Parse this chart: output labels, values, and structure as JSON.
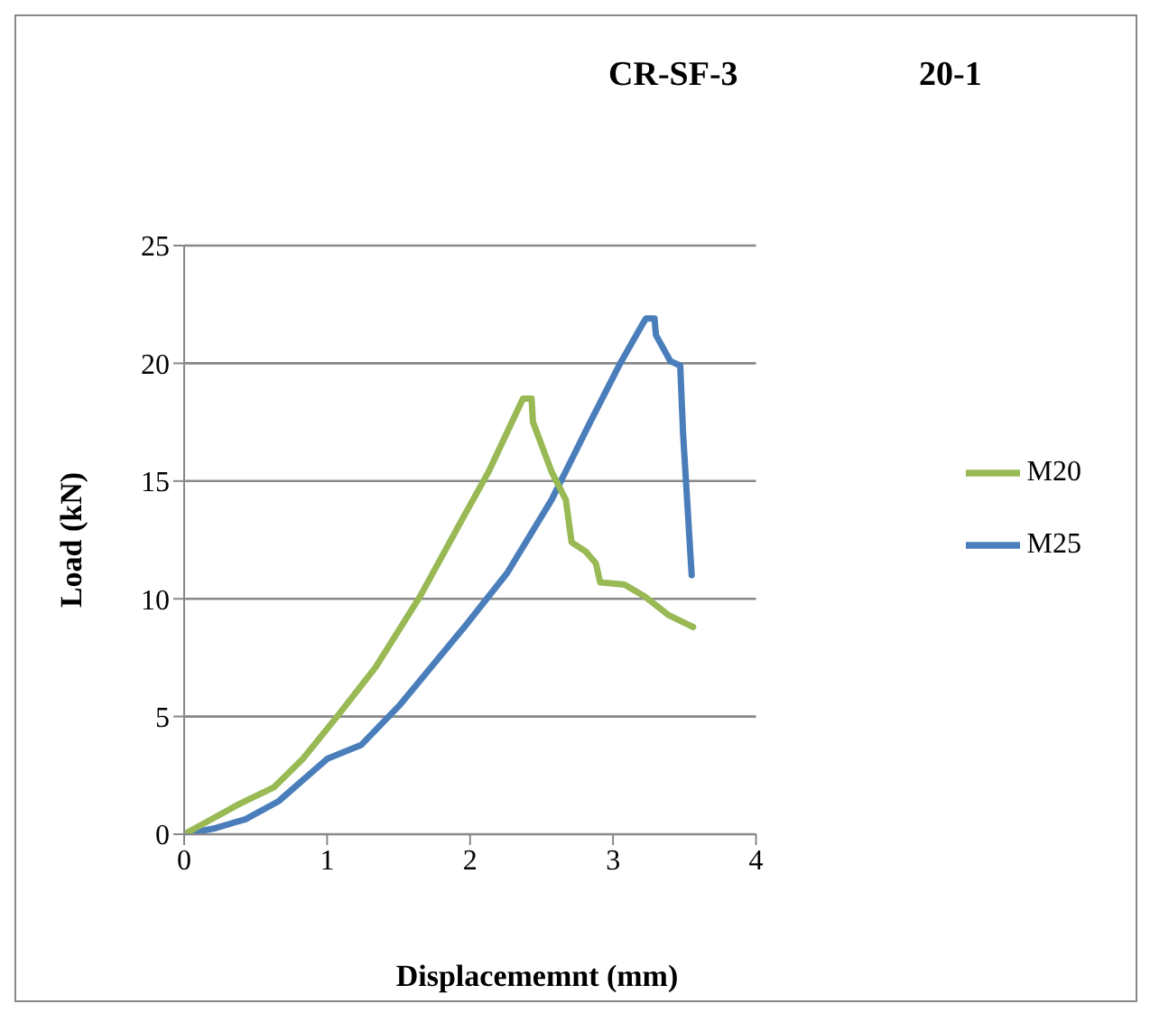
{
  "chart_data": {
    "type": "line",
    "title": "CR-SF-3",
    "subtitle": "20-1",
    "xlabel": "Displacememnt (mm)",
    "ylabel": "Load (kN)",
    "xlim": [
      0,
      4
    ],
    "xticks": [
      0,
      1,
      2,
      3,
      4
    ],
    "ylim": [
      0,
      25
    ],
    "yticks": [
      0,
      5,
      10,
      15,
      20,
      25
    ],
    "grid": "y",
    "legend": "right",
    "marker": "none",
    "line_style": "solid",
    "series": [
      {
        "name": "M25",
        "color": "#4a7ebb",
        "x": [
          0,
          0.22,
          0.43,
          0.66,
          1.0,
          1.24,
          1.51,
          1.96,
          2.26,
          2.57,
          2.84,
          3.05,
          3.2,
          3.23,
          3.29,
          3.3,
          3.4,
          3.47,
          3.49,
          3.55
        ],
        "values": [
          0,
          0.26,
          0.64,
          1.4,
          3.2,
          3.8,
          5.5,
          8.8,
          11.1,
          14.2,
          17.5,
          20.0,
          21.6,
          21.9,
          21.9,
          21.2,
          20.1,
          19.9,
          17.0,
          11.0
        ]
      },
      {
        "name": "M20",
        "color": "#98b954",
        "x": [
          0,
          0.15,
          0.39,
          0.63,
          0.83,
          1.07,
          1.34,
          1.65,
          1.92,
          2.13,
          2.37,
          2.43,
          2.44,
          2.57,
          2.67,
          2.71,
          2.81,
          2.88,
          2.91,
          3.08,
          3.22,
          3.39,
          3.56
        ],
        "values": [
          0,
          0.5,
          1.3,
          2.0,
          3.2,
          5.0,
          7.1,
          10.1,
          13.1,
          15.4,
          18.5,
          18.5,
          17.5,
          15.4,
          14.2,
          12.4,
          12.0,
          11.5,
          10.7,
          10.6,
          10.1,
          9.3,
          8.8
        ]
      }
    ]
  }
}
